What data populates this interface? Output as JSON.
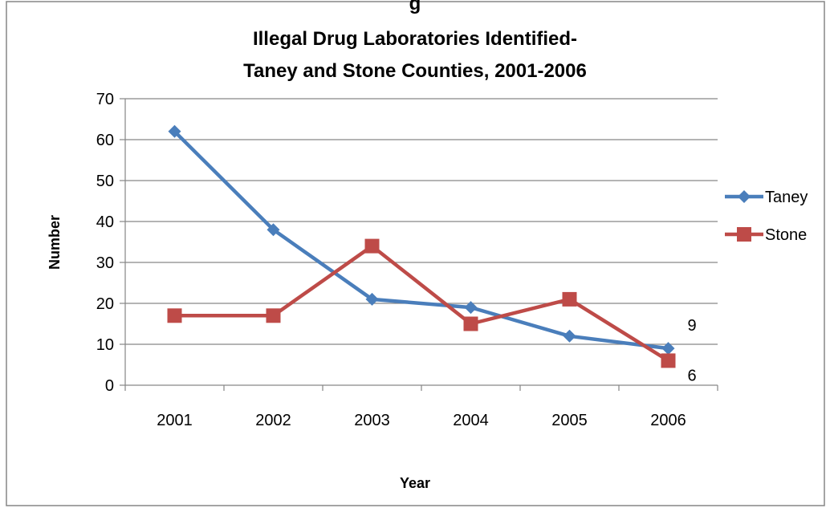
{
  "chart_data": {
    "type": "line",
    "title_partial_top": "g",
    "title_line1": "Illegal Drug Laboratories Identified-",
    "title_line2": "Taney and Stone Counties, 2001-2006",
    "xlabel": "Year",
    "ylabel": "Number",
    "categories": [
      "2001",
      "2002",
      "2003",
      "2004",
      "2005",
      "2006"
    ],
    "ylim": [
      0,
      70
    ],
    "yticks": [
      0,
      10,
      20,
      30,
      40,
      50,
      60,
      70
    ],
    "grid": true,
    "legend_position": "right",
    "series": [
      {
        "name": "Taney",
        "values": [
          62,
          38,
          21,
          19,
          12,
          9
        ],
        "color": "#4a7ebb",
        "marker": "diamond"
      },
      {
        "name": "Stone",
        "values": [
          17,
          17,
          34,
          15,
          21,
          6
        ],
        "color": "#be4b48",
        "marker": "square"
      }
    ],
    "data_labels": [
      {
        "series": "Taney",
        "category": "2006",
        "text": "9"
      },
      {
        "series": "Stone",
        "category": "2006",
        "text": "6"
      }
    ]
  }
}
